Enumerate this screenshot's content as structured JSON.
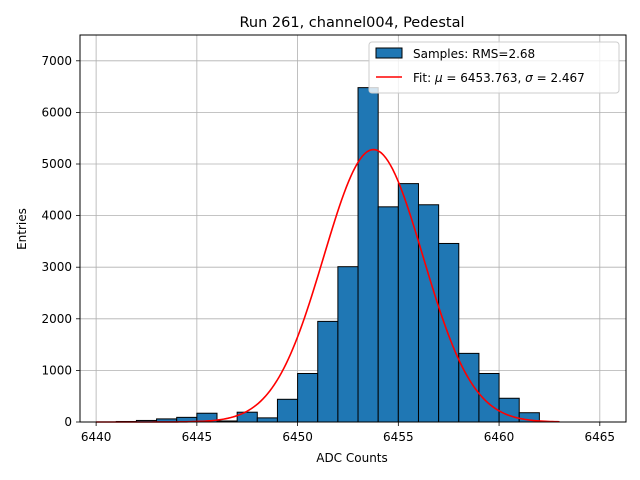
{
  "chart_data": {
    "type": "bar",
    "title": "Run 261, channel004, Pedestal",
    "xlabel": "ADC Counts",
    "ylabel": "Entries",
    "xlim": [
      6439.2,
      6466.3
    ],
    "ylim": [
      0,
      7500
    ],
    "grid": true,
    "legend_position": "top-right",
    "x_ticks": [
      6440,
      6445,
      6450,
      6455,
      6460,
      6465
    ],
    "y_ticks": [
      0,
      1000,
      2000,
      3000,
      4000,
      5000,
      6000,
      7000
    ],
    "histogram": {
      "name": "Samples: RMS=2.68",
      "color": "#1f77b4",
      "edge_color": "#000000",
      "bin_edges": [
        6441,
        6442,
        6443,
        6444,
        6445,
        6446,
        6447,
        6448,
        6449,
        6450,
        6451,
        6452,
        6453,
        6454,
        6455,
        6456,
        6457,
        6458,
        6459,
        6460,
        6461,
        6462
      ],
      "counts": [
        10,
        30,
        60,
        90,
        170,
        20,
        190,
        80,
        440,
        940,
        1950,
        3010,
        6480,
        4170,
        4620,
        4210,
        3460,
        1330,
        940,
        460,
        180,
        30
      ]
    },
    "fit": {
      "name": "Fit: μ = 6453.763, σ = 2.467",
      "label_prefix": "Fit: ",
      "mu_symbol": "μ",
      "sigma_symbol": "σ",
      "mu_text": " = 6453.763, ",
      "sigma_text": " = 2.467",
      "color": "#ff0000",
      "type": "gaussian",
      "mu": 6453.763,
      "sigma": 2.467,
      "amplitude": 5280,
      "x_range": [
        6440,
        6463
      ]
    }
  }
}
